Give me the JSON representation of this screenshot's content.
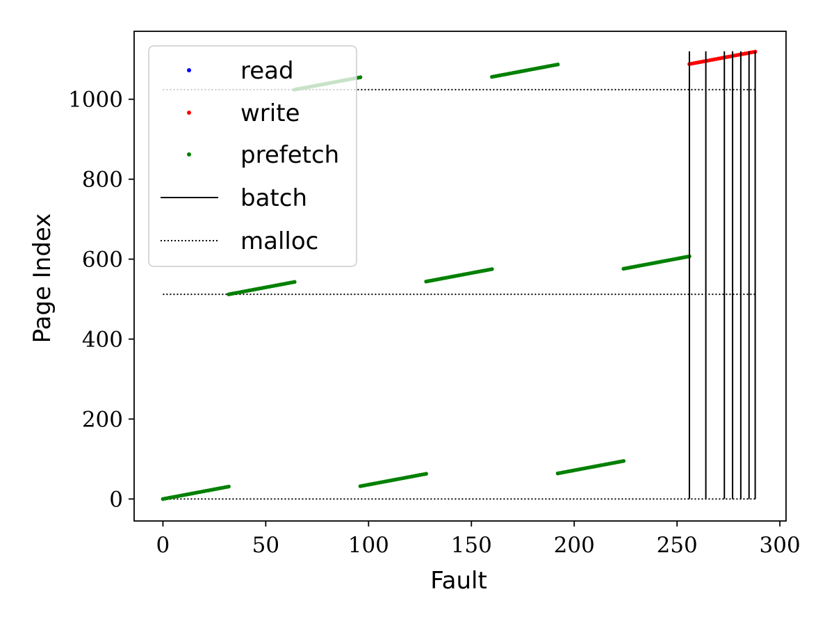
{
  "chart_data": {
    "type": "scatter",
    "title": "",
    "xlabel": "Fault",
    "ylabel": "Page Index",
    "xlim": [
      -14,
      303
    ],
    "ylim": [
      -55,
      1170
    ],
    "xticks": [
      0,
      50,
      100,
      150,
      200,
      250,
      300
    ],
    "yticks": [
      0,
      200,
      400,
      600,
      800,
      1000
    ],
    "grid": false,
    "legend_position": "upper-left",
    "series": [
      {
        "name": "read",
        "kind": "point",
        "color": "#0000ff",
        "segments": []
      },
      {
        "name": "write",
        "kind": "point",
        "color": "#ff0000",
        "segments": [
          {
            "x0": 256,
            "x1": 288,
            "y0": 1088,
            "y1": 1119
          }
        ]
      },
      {
        "name": "prefetch",
        "kind": "point",
        "color": "#008000",
        "segments": [
          {
            "x0": 0,
            "x1": 32,
            "y0": 0,
            "y1": 31
          },
          {
            "x0": 32,
            "x1": 64,
            "y0": 512,
            "y1": 543
          },
          {
            "x0": 64,
            "x1": 96,
            "y0": 1024,
            "y1": 1055
          },
          {
            "x0": 96,
            "x1": 128,
            "y0": 32,
            "y1": 63
          },
          {
            "x0": 128,
            "x1": 160,
            "y0": 544,
            "y1": 575
          },
          {
            "x0": 160,
            "x1": 192,
            "y0": 1056,
            "y1": 1087
          },
          {
            "x0": 192,
            "x1": 224,
            "y0": 64,
            "y1": 95
          },
          {
            "x0": 224,
            "x1": 256,
            "y0": 576,
            "y1": 607
          }
        ]
      },
      {
        "name": "batch",
        "kind": "vline",
        "color": "#000000",
        "x": [
          256,
          264,
          273,
          277,
          281,
          285,
          288
        ],
        "y_range": [
          0,
          1120
        ]
      },
      {
        "name": "malloc",
        "kind": "hline-dotted",
        "color": "#000000",
        "y": [
          0,
          512,
          1024
        ],
        "x_range": [
          0,
          288
        ]
      }
    ]
  }
}
